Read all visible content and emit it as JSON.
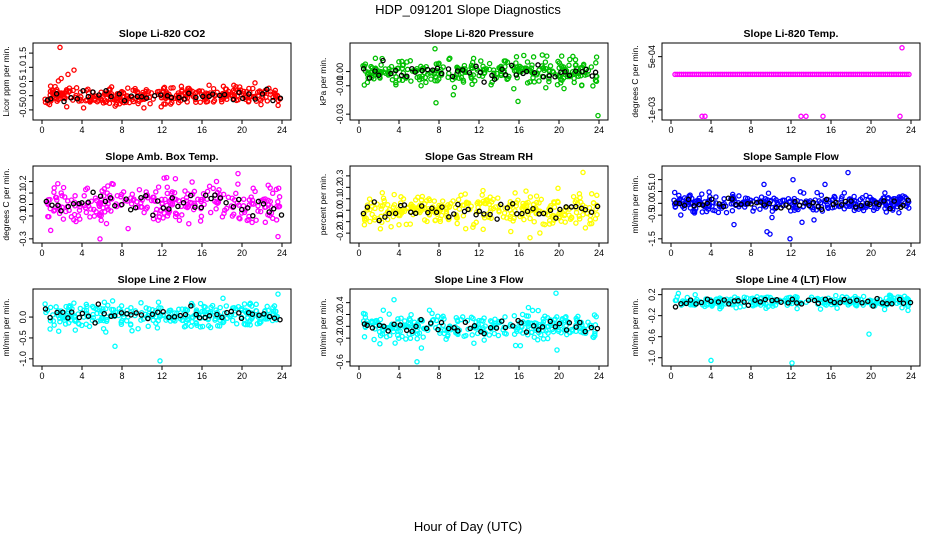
{
  "figure": {
    "title": "HDP_091201  Slope Diagnostics",
    "xlabel": "Hour of Day (UTC)"
  },
  "chart_data": [
    {
      "type": "scatter",
      "title": "Slope Li-820 CO2",
      "ylabel": "Licor ppm per min.",
      "xlim": [
        0,
        24
      ],
      "ylim": [
        -0.75,
        1.75
      ],
      "xticks": [
        "0",
        "4",
        "8",
        "12",
        "16",
        "20",
        "24"
      ],
      "yticks": [
        {
          "v": -0.5,
          "label": "-0.5"
        },
        {
          "v": 0,
          "label": "0.0"
        },
        {
          "v": 0.5,
          "label": "0.5"
        },
        {
          "v": 1,
          "label": "1.0"
        },
        {
          "v": 1.5,
          "label": "1.5"
        }
      ],
      "color": "#ff0000",
      "spread": 0.17,
      "center": 0.0,
      "seed": 11,
      "n": 330,
      "nBlack": 40,
      "outliers": [
        [
          1.8,
          1.7
        ],
        [
          3.2,
          0.9
        ],
        [
          2.6,
          0.75
        ],
        [
          21.3,
          0.45
        ]
      ]
    },
    {
      "type": "scatter",
      "title": "Slope Li-820 Pressure",
      "ylabel": "kPa per min.",
      "xlim": [
        0,
        24
      ],
      "ylim": [
        -0.032,
        0.018
      ],
      "xticks": [
        "0",
        "4",
        "8",
        "12",
        "16",
        "20",
        "24"
      ],
      "yticks": [
        {
          "v": -0.03,
          "label": "-0.03"
        },
        {
          "v": -0.01,
          "label": "-0.01"
        },
        {
          "v": 0,
          "label": "0.00"
        }
      ],
      "color": "#00c000",
      "spread": 0.0045,
      "center": 0.0,
      "seed": 23,
      "n": 300,
      "nBlack": 45,
      "outliers": [
        [
          7.7,
          -0.022
        ],
        [
          15.9,
          -0.021
        ],
        [
          7.6,
          0.016
        ],
        [
          23.9,
          -0.031
        ],
        [
          20.5,
          -0.012
        ]
      ]
    },
    {
      "type": "scatter",
      "title": "Slope Li-820 Temp.",
      "ylabel": "degrees C per min.",
      "xlim": [
        0,
        24
      ],
      "ylim": [
        -0.0012,
        0.0008
      ],
      "xticks": [
        "0",
        "4",
        "8",
        "12",
        "16",
        "20",
        "24"
      ],
      "yticks": [
        {
          "v": -0.001,
          "label": "-1e-03"
        },
        {
          "v": 0.0005,
          "label": "5e-04"
        }
      ],
      "color": "#ff00ff",
      "spread": 0.0,
      "center": 0.0,
      "seed": 37,
      "n": 110,
      "nBlack": 0,
      "regular": true,
      "outliers": [
        [
          3.1,
          -0.00118
        ],
        [
          3.4,
          -0.00118
        ],
        [
          13.0,
          -0.00118
        ],
        [
          13.5,
          -0.00118
        ],
        [
          15.2,
          -0.00118
        ],
        [
          22.9,
          -0.00118
        ],
        [
          23.1,
          0.00075
        ]
      ]
    },
    {
      "type": "scatter",
      "title": "Slope Amb. Box Temp.",
      "ylabel": "degrees C per min.",
      "xlim": [
        0,
        24
      ],
      "ylim": [
        -0.31,
        0.31
      ],
      "xticks": [
        "0",
        "4",
        "8",
        "12",
        "16",
        "20",
        "24"
      ],
      "yticks": [
        {
          "v": -0.3,
          "label": "-0.3"
        },
        {
          "v": -0.1,
          "label": "-0.1"
        },
        {
          "v": 0,
          "label": "0.0"
        },
        {
          "v": 0.1,
          "label": "0.1"
        },
        {
          "v": 0.2,
          "label": "0.2"
        }
      ],
      "color": "#ff00ff",
      "spread": 0.09,
      "center": 0.0,
      "seed": 41,
      "n": 280,
      "nBlack": 45,
      "outliers": [
        [
          5.8,
          -0.3
        ],
        [
          19.6,
          0.27
        ],
        [
          23.6,
          -0.28
        ]
      ]
    },
    {
      "type": "scatter",
      "title": "Slope Gas Stream RH",
      "ylabel": "percent per min.",
      "xlim": [
        0,
        24
      ],
      "ylim": [
        -0.26,
        0.36
      ],
      "xticks": [
        "0",
        "4",
        "8",
        "12",
        "16",
        "20",
        "24"
      ],
      "yticks": [
        {
          "v": -0.2,
          "label": "-0.2"
        },
        {
          "v": -0.1,
          "label": "-0.1"
        },
        {
          "v": 0,
          "label": "0.0"
        },
        {
          "v": 0.1,
          "label": "0.1"
        },
        {
          "v": 0.2,
          "label": "0.2"
        },
        {
          "v": 0.3,
          "label": "0.3"
        }
      ],
      "color": "#ffff00",
      "spread": 0.07,
      "center": 0.0,
      "seed": 53,
      "n": 320,
      "nBlack": 45,
      "outliers": [
        [
          22.4,
          0.33
        ],
        [
          17.1,
          -0.24
        ]
      ]
    },
    {
      "type": "scatter",
      "title": "Slope Sample Flow",
      "ylabel": "ml/min per min.",
      "xlim": [
        0,
        24
      ],
      "ylim": [
        -1.55,
        1.45
      ],
      "xticks": [
        "0",
        "4",
        "8",
        "12",
        "16",
        "20",
        "24"
      ],
      "yticks": [
        {
          "v": -1.5,
          "label": "-1.5"
        },
        {
          "v": -0.5,
          "label": "-0.5"
        },
        {
          "v": 0,
          "label": "0.0"
        },
        {
          "v": 0.5,
          "label": "0.5"
        },
        {
          "v": 1,
          "label": "1.0"
        }
      ],
      "color": "#0000ff",
      "spread": 0.17,
      "center": 0.0,
      "seed": 67,
      "n": 300,
      "nBlack": 50,
      "outliers": [
        [
          9.6,
          -1.2
        ],
        [
          9.9,
          -1.3
        ],
        [
          11.9,
          -1.5
        ],
        [
          12.2,
          1.0
        ],
        [
          17.7,
          1.3
        ],
        [
          6.3,
          -0.9
        ],
        [
          10.1,
          -0.6
        ],
        [
          13.1,
          -0.8
        ],
        [
          14.3,
          -0.7
        ],
        [
          9.3,
          0.8
        ],
        [
          15.4,
          0.8
        ]
      ]
    },
    {
      "type": "scatter",
      "title": "Slope Line 2 Flow",
      "ylabel": "ml/min per min.",
      "xlim": [
        0,
        24
      ],
      "ylim": [
        -1.1,
        0.6
      ],
      "xticks": [
        "0",
        "4",
        "8",
        "12",
        "16",
        "20",
        "24"
      ],
      "yticks": [
        {
          "v": -1,
          "label": "-1.0"
        },
        {
          "v": -0.5,
          "label": "-0.5"
        },
        {
          "v": 0,
          "label": "0.0"
        }
      ],
      "color": "#00ffff",
      "spread": 0.15,
      "center": 0.05,
      "seed": 71,
      "n": 300,
      "nBlack": 45,
      "outliers": [
        [
          11.8,
          -1.05
        ],
        [
          7.3,
          -0.7
        ],
        [
          23.6,
          0.55
        ],
        [
          18.1,
          0.45
        ]
      ]
    },
    {
      "type": "scatter",
      "title": "Slope Line 3 Flow",
      "ylabel": "ml/min per min.",
      "xlim": [
        0,
        24
      ],
      "ylim": [
        -0.62,
        0.58
      ],
      "xticks": [
        "0",
        "4",
        "8",
        "12",
        "16",
        "20",
        "24"
      ],
      "yticks": [
        {
          "v": -0.6,
          "label": "-0.6"
        },
        {
          "v": -0.2,
          "label": "-0.2"
        },
        {
          "v": 0,
          "label": "0.0"
        },
        {
          "v": 0.2,
          "label": "0.2"
        },
        {
          "v": 0.4,
          "label": "0.4"
        }
      ],
      "color": "#00ffff",
      "spread": 0.11,
      "center": 0.0,
      "seed": 83,
      "n": 300,
      "nBlack": 45,
      "outliers": [
        [
          5.8,
          -0.6
        ],
        [
          19.7,
          0.56
        ],
        [
          3.5,
          0.45
        ],
        [
          19.8,
          -0.4
        ]
      ]
    },
    {
      "type": "scatter",
      "title": "Slope Line 4 (LT) Flow",
      "ylabel": "ml/min per min.",
      "xlim": [
        0,
        24
      ],
      "ylim": [
        -1.1,
        0.25
      ],
      "xticks": [
        "0",
        "4",
        "8",
        "12",
        "16",
        "20",
        "24"
      ],
      "yticks": [
        {
          "v": -1,
          "label": "-1.0"
        },
        {
          "v": -0.6,
          "label": "-0.6"
        },
        {
          "v": -0.2,
          "label": "-0.2"
        },
        {
          "v": 0.2,
          "label": "0.2"
        }
      ],
      "color": "#00ffff",
      "spread": 0.06,
      "center": 0.06,
      "seed": 97,
      "n": 280,
      "nBlack": 45,
      "outliers": [
        [
          4.0,
          -1.05
        ],
        [
          12.1,
          -1.1
        ],
        [
          19.8,
          -0.55
        ],
        [
          23.7,
          -0.1
        ]
      ]
    }
  ]
}
